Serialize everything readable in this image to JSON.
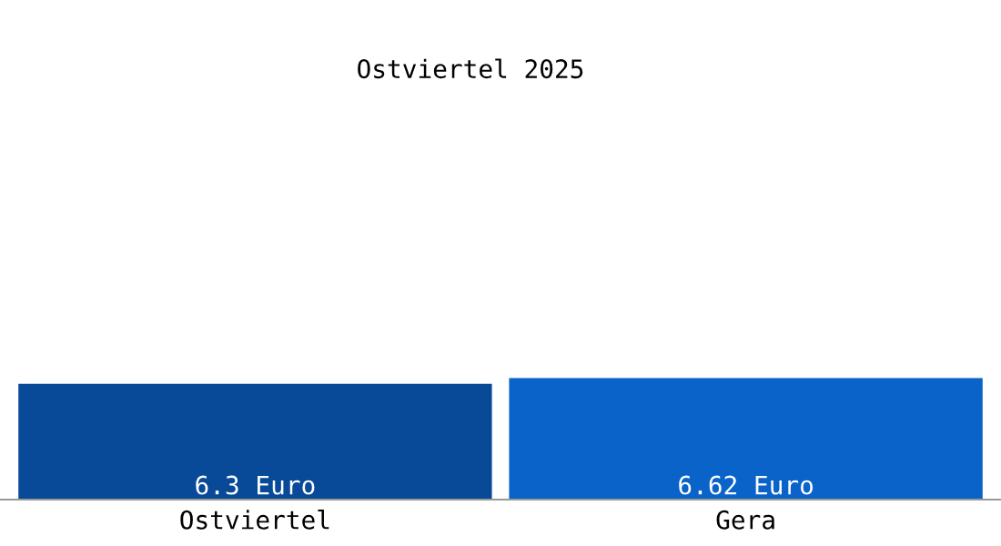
{
  "chart_data": {
    "type": "bar",
    "title": "Ostviertel 2025",
    "categories": [
      "Ostviertel",
      "Gera"
    ],
    "values": [
      6.3,
      6.62
    ],
    "colors": [
      "#084a97",
      "#0a63c9"
    ],
    "value_labels": [
      "6.3 Euro",
      "6.62 Euro"
    ],
    "tick_labels": "x",
    "grid": false,
    "legend": false
  }
}
